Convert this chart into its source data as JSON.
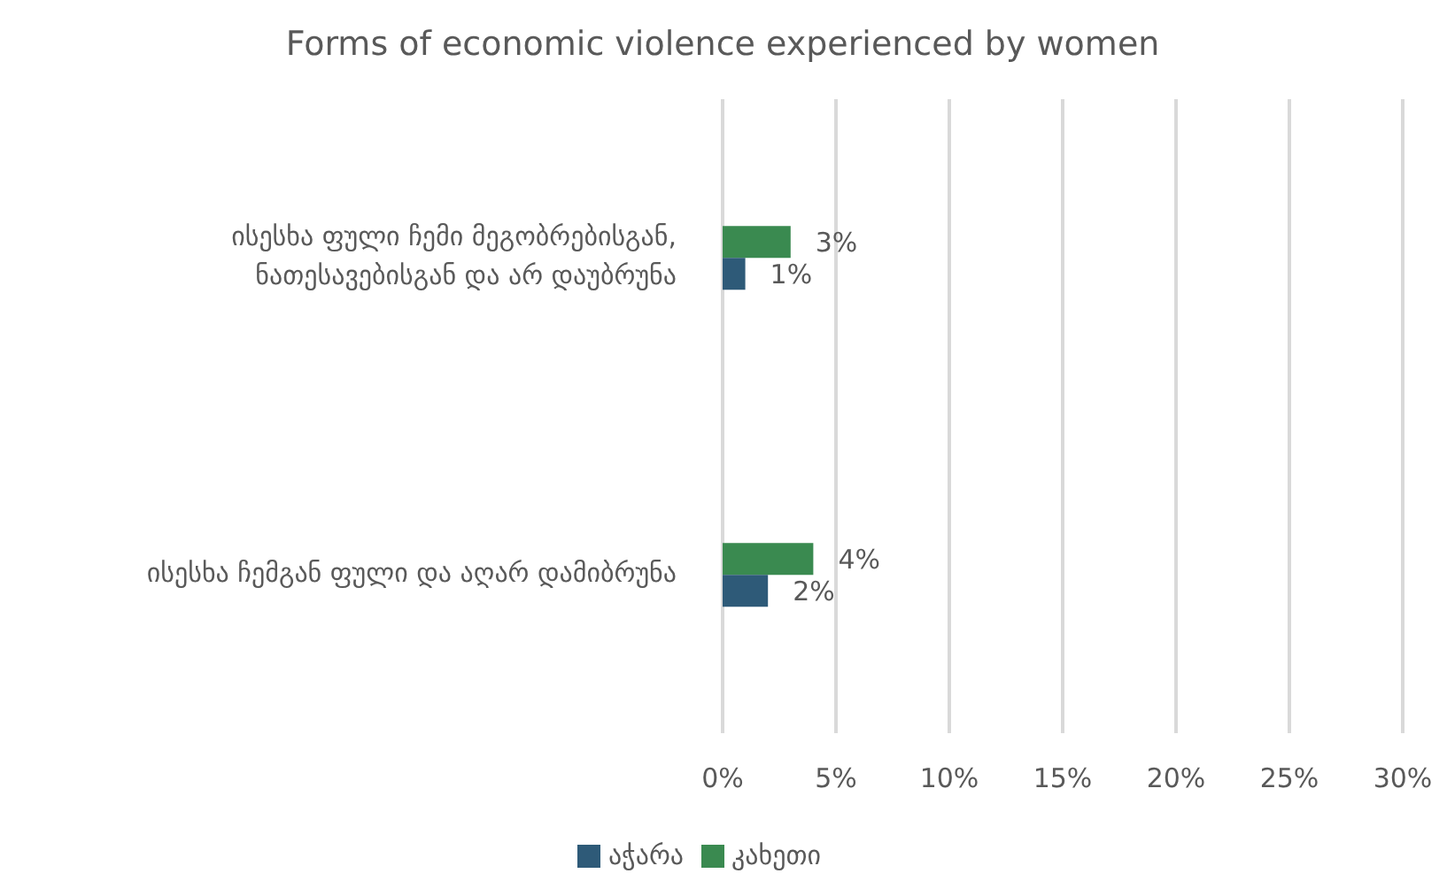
{
  "chart_data": {
    "type": "bar",
    "orientation": "horizontal",
    "title": "Forms of economic violence experienced by women",
    "categories": [
      "ისესხა ფული ჩემი მეგობრებისგან, ნათესავებისგან და არ დაუბრუნა",
      "ისესხა ჩემგან ფული და აღარ დამიბრუნა"
    ],
    "series": [
      {
        "name": "კახეთი",
        "color": "#3a8a50",
        "values": [
          3,
          4
        ],
        "value_labels": [
          "3%",
          "4%"
        ]
      },
      {
        "name": "აჭარა",
        "color": "#2e5a78",
        "values": [
          1,
          2
        ],
        "value_labels": [
          "1%",
          "2%"
        ]
      }
    ],
    "xlim": [
      0,
      30
    ],
    "xticks": [
      {
        "value": 0,
        "label": "0%"
      },
      {
        "value": 5,
        "label": "5%"
      },
      {
        "value": 10,
        "label": "10%"
      },
      {
        "value": 15,
        "label": "15%"
      },
      {
        "value": 20,
        "label": "20%"
      },
      {
        "value": 25,
        "label": "25%"
      },
      {
        "value": 30,
        "label": "30%"
      }
    ],
    "grid": "x",
    "legend": "bottom"
  }
}
